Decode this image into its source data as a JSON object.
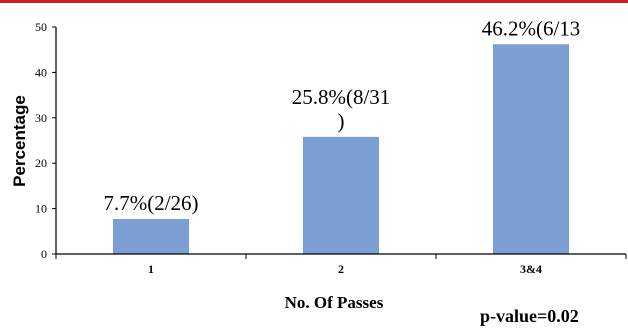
{
  "colors": {
    "top_rule": "#cc1f27",
    "bar": "#7b9ed3",
    "axis": "#000000"
  },
  "chart_data": {
    "type": "bar",
    "title": "",
    "xlabel": "No. Of Passes",
    "ylabel": "Percentage",
    "ylim": [
      0,
      50
    ],
    "yticks": [
      "0",
      "10",
      "20",
      "30",
      "40",
      "50"
    ],
    "grid": false,
    "categories": [
      "1",
      "2",
      "3&4"
    ],
    "values": [
      7.7,
      25.8,
      46.2
    ],
    "data_labels": [
      [
        "7.7%(2/26)"
      ],
      [
        "25.8%(8/31",
        ")"
      ],
      [
        "46.2%(6/13"
      ]
    ],
    "annotation": "p-value=0.02"
  }
}
